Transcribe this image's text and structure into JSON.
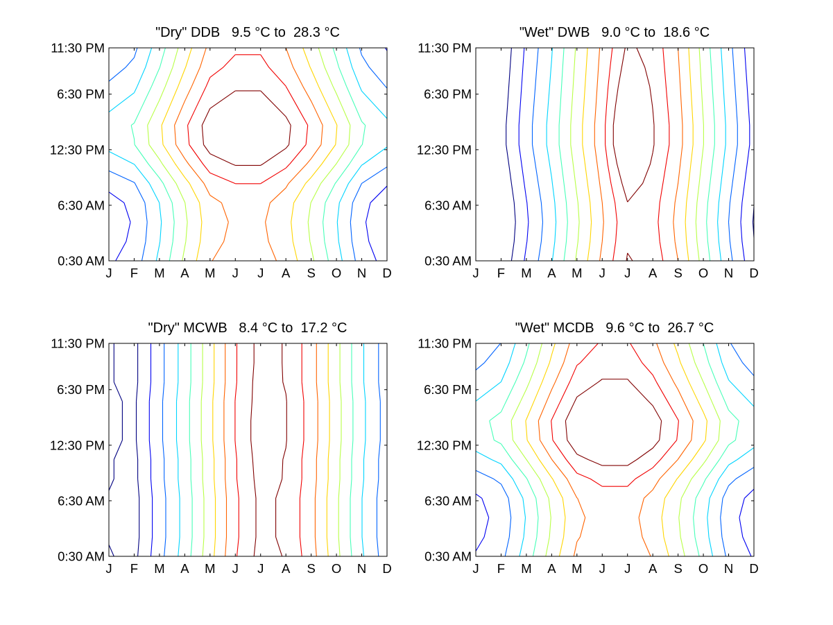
{
  "chart_data": [
    {
      "type": "contour",
      "title": "\"Dry\" DDB   9.5 °C to  28.3 °C",
      "x_ticks": [
        "J",
        "F",
        "M",
        "A",
        "M",
        "J",
        "J",
        "A",
        "S",
        "O",
        "N",
        "D"
      ],
      "y_ticks": [
        "0:30 AM",
        "6:30 AM",
        "12:30 PM",
        "6:30 PM",
        "11:30 PM"
      ],
      "xlim": [
        1,
        12
      ],
      "ylim": [
        0.5,
        23.5
      ],
      "z_range": [
        9.5,
        28.3
      ],
      "colormap": "jet",
      "grid": false,
      "grid_values": [
        [
          12.0,
          13.2,
          16.5,
          20.2,
          23.5,
          24.6,
          24.6,
          23.0,
          20.2,
          16.9,
          13.3,
          11.6
        ],
        [
          11.5,
          12.7,
          16.0,
          19.7,
          23.0,
          24.1,
          24.1,
          22.5,
          19.7,
          16.4,
          12.8,
          11.1
        ],
        [
          11.3,
          12.5,
          15.8,
          19.5,
          22.8,
          23.9,
          23.9,
          22.3,
          19.5,
          16.2,
          12.6,
          10.9
        ],
        [
          11.6,
          12.8,
          16.1,
          19.8,
          23.1,
          24.2,
          24.2,
          22.6,
          19.8,
          16.5,
          12.9,
          11.2
        ],
        [
          12.9,
          14.1,
          17.4,
          21.1,
          24.4,
          25.5,
          25.5,
          23.9,
          21.1,
          17.8,
          14.2,
          12.5
        ],
        [
          14.9,
          16.1,
          19.4,
          23.1,
          26.4,
          27.5,
          27.5,
          25.9,
          23.1,
          19.8,
          16.2,
          14.5
        ],
        [
          16.7,
          17.9,
          21.2,
          24.9,
          28.2,
          29.3,
          29.3,
          27.7,
          24.9,
          21.6,
          18.0,
          16.3
        ],
        [
          16.9,
          18.1,
          21.4,
          25.1,
          28.4,
          29.5,
          29.5,
          27.9,
          25.1,
          21.8,
          18.2,
          16.5
        ],
        [
          15.7,
          16.9,
          20.2,
          23.9,
          27.2,
          28.3,
          28.3,
          26.7,
          23.9,
          20.6,
          17.0,
          15.3
        ],
        [
          14.5,
          15.7,
          19.0,
          22.7,
          26.0,
          27.1,
          27.1,
          25.5,
          22.7,
          19.4,
          15.8,
          14.1
        ],
        [
          13.4,
          14.6,
          17.9,
          21.6,
          24.9,
          26.0,
          26.0,
          24.4,
          21.6,
          18.3,
          14.7,
          13.0
        ],
        [
          12.6,
          13.8,
          17.1,
          20.8,
          24.1,
          25.2,
          25.2,
          23.6,
          20.8,
          17.5,
          13.9,
          12.2
        ]
      ]
    },
    {
      "type": "contour",
      "title": "\"Wet\" DWB   9.0 °C to  18.6 °C",
      "x_ticks": [
        "J",
        "F",
        "M",
        "A",
        "M",
        "J",
        "J",
        "A",
        "S",
        "O",
        "N",
        "D"
      ],
      "y_ticks": [
        "0:30 AM",
        "6:30 AM",
        "12:30 PM",
        "6:30 PM",
        "11:30 PM"
      ],
      "xlim": [
        1,
        12
      ],
      "ylim": [
        0.5,
        23.5
      ],
      "z_range": [
        9.0,
        18.6
      ],
      "colormap": "jet",
      "grid": false,
      "grid_values": [
        [
          8.2,
          8.7,
          10.6,
          12.3,
          14.4,
          16.4,
          18.2,
          17.8,
          16.2,
          13.9,
          11.7,
          9.7
        ],
        [
          8.0,
          8.5,
          10.4,
          12.1,
          14.2,
          16.2,
          18.0,
          17.6,
          16.0,
          13.7,
          11.5,
          9.5
        ],
        [
          7.9,
          8.4,
          10.3,
          12.0,
          14.1,
          16.1,
          17.9,
          17.5,
          15.9,
          13.6,
          11.4,
          9.4
        ],
        [
          8.0,
          8.5,
          10.4,
          12.1,
          14.2,
          16.2,
          18.1,
          17.6,
          16.0,
          13.7,
          11.5,
          9.5
        ],
        [
          8.2,
          8.7,
          10.6,
          12.3,
          14.4,
          16.4,
          18.6,
          17.8,
          16.2,
          13.9,
          11.7,
          9.7
        ],
        [
          8.4,
          8.9,
          10.8,
          12.5,
          14.6,
          16.6,
          19.2,
          18.0,
          16.4,
          14.1,
          11.9,
          9.9
        ],
        [
          8.6,
          9.1,
          11.0,
          12.7,
          14.8,
          16.8,
          19.8,
          18.2,
          16.6,
          14.3,
          12.1,
          10.1
        ],
        [
          8.6,
          9.1,
          11.0,
          12.7,
          14.8,
          16.8,
          19.8,
          18.2,
          16.6,
          14.3,
          12.1,
          10.1
        ],
        [
          8.5,
          9.0,
          10.9,
          12.6,
          14.7,
          16.7,
          19.4,
          18.1,
          16.5,
          14.2,
          12.0,
          10.0
        ],
        [
          8.4,
          8.9,
          10.8,
          12.5,
          14.6,
          16.6,
          19.0,
          18.0,
          16.4,
          14.1,
          11.9,
          9.9
        ],
        [
          8.3,
          8.8,
          10.7,
          12.4,
          14.5,
          16.5,
          18.6,
          17.9,
          16.3,
          14.0,
          11.8,
          9.8
        ],
        [
          8.2,
          8.7,
          10.6,
          12.3,
          14.4,
          16.4,
          18.3,
          17.8,
          16.2,
          13.9,
          11.7,
          9.7
        ]
      ]
    },
    {
      "type": "contour",
      "title": "\"Dry\" MCWB   8.4 °C to  17.2 °C",
      "x_ticks": [
        "J",
        "F",
        "M",
        "A",
        "M",
        "J",
        "J",
        "A",
        "S",
        "O",
        "N",
        "D"
      ],
      "y_ticks": [
        "0:30 AM",
        "6:30 AM",
        "12:30 PM",
        "6:30 PM",
        "11:30 PM"
      ],
      "xlim": [
        1,
        12
      ],
      "ylim": [
        0.5,
        23.5
      ],
      "z_range": [
        8.4,
        17.2
      ],
      "colormap": "jet",
      "grid": false,
      "grid_values": [
        [
          8.9,
          8.6,
          10.3,
          11.9,
          13.8,
          15.8,
          17.1,
          16.7,
          15.4,
          13.5,
          11.6,
          10.1
        ],
        [
          8.8,
          8.5,
          10.2,
          11.8,
          13.7,
          15.7,
          17.0,
          16.6,
          15.3,
          13.4,
          11.5,
          10.0
        ],
        [
          8.8,
          8.5,
          10.2,
          11.8,
          13.7,
          15.7,
          17.0,
          16.6,
          15.3,
          13.4,
          11.5,
          10.0
        ],
        [
          8.8,
          8.5,
          10.2,
          11.8,
          13.7,
          15.7,
          17.0,
          16.6,
          15.3,
          13.4,
          11.5,
          10.0
        ],
        [
          8.9,
          8.6,
          10.3,
          11.9,
          13.8,
          15.8,
          17.1,
          16.7,
          15.4,
          13.5,
          11.6,
          10.1
        ],
        [
          8.9,
          8.6,
          10.3,
          11.9,
          13.8,
          15.8,
          17.2,
          16.7,
          15.4,
          13.5,
          11.6,
          10.1
        ],
        [
          9.0,
          8.7,
          10.4,
          12.0,
          13.9,
          15.9,
          17.3,
          16.8,
          15.5,
          13.6,
          11.7,
          10.2
        ],
        [
          9.0,
          8.7,
          10.4,
          12.0,
          13.9,
          15.9,
          17.3,
          16.8,
          15.5,
          13.6,
          11.7,
          10.2
        ],
        [
          9.0,
          8.7,
          10.4,
          12.0,
          13.9,
          15.9,
          17.2,
          16.8,
          15.5,
          13.6,
          11.7,
          10.2
        ],
        [
          8.9,
          8.6,
          10.3,
          11.9,
          13.8,
          15.8,
          17.2,
          16.7,
          15.4,
          13.5,
          11.6,
          10.1
        ],
        [
          8.9,
          8.6,
          10.3,
          11.9,
          13.8,
          15.8,
          17.1,
          16.7,
          15.4,
          13.5,
          11.6,
          10.1
        ],
        [
          8.9,
          8.6,
          10.3,
          11.9,
          13.8,
          15.8,
          17.1,
          16.7,
          15.4,
          13.5,
          11.6,
          10.1
        ]
      ]
    },
    {
      "type": "contour",
      "title": "\"Wet\" MCDB   9.6 °C to  26.7 °C",
      "x_ticks": [
        "J",
        "F",
        "M",
        "A",
        "M",
        "J",
        "J",
        "A",
        "S",
        "O",
        "N",
        "D"
      ],
      "y_ticks": [
        "0:30 AM",
        "6:30 AM",
        "12:30 PM",
        "6:30 PM",
        "11:30 PM"
      ],
      "xlim": [
        1,
        12
      ],
      "ylim": [
        0.5,
        23.5
      ],
      "z_range": [
        9.6,
        26.7
      ],
      "colormap": "jet",
      "grid": false,
      "grid_values": [
        [
          12.3,
          13.4,
          16.4,
          19.8,
          22.8,
          23.8,
          23.8,
          22.3,
          19.8,
          16.8,
          13.5,
          12.0
        ],
        [
          11.8,
          12.9,
          15.9,
          19.3,
          22.3,
          23.3,
          23.3,
          21.8,
          19.3,
          16.3,
          13.0,
          11.5
        ],
        [
          11.6,
          12.7,
          15.7,
          19.1,
          22.1,
          23.1,
          23.1,
          21.6,
          19.1,
          16.1,
          12.8,
          11.3
        ],
        [
          11.9,
          13.0,
          16.0,
          19.4,
          22.4,
          23.4,
          23.4,
          21.9,
          19.4,
          16.4,
          13.1,
          11.6
        ],
        [
          13.1,
          14.2,
          17.2,
          20.6,
          23.6,
          24.6,
          24.6,
          23.1,
          20.6,
          17.6,
          14.3,
          12.8
        ],
        [
          14.9,
          16.0,
          19.0,
          22.4,
          25.4,
          26.4,
          26.4,
          24.9,
          22.4,
          19.4,
          16.1,
          14.6
        ],
        [
          16.5,
          17.6,
          20.6,
          24.0,
          27.0,
          28.0,
          28.0,
          26.5,
          24.0,
          21.0,
          17.7,
          16.2
        ],
        [
          16.7,
          17.8,
          20.8,
          24.2,
          27.2,
          28.2,
          28.2,
          26.7,
          24.2,
          21.2,
          17.9,
          16.4
        ],
        [
          15.6,
          16.7,
          19.7,
          23.1,
          26.1,
          27.1,
          27.1,
          25.6,
          23.1,
          20.1,
          16.8,
          15.3
        ],
        [
          14.5,
          15.6,
          18.6,
          22.0,
          25.0,
          26.0,
          26.0,
          24.5,
          22.0,
          19.0,
          15.7,
          14.2
        ],
        [
          13.5,
          14.6,
          17.6,
          21.0,
          24.0,
          25.0,
          25.0,
          23.5,
          21.0,
          18.0,
          14.7,
          13.2
        ],
        [
          12.8,
          13.9,
          16.9,
          20.3,
          23.3,
          24.3,
          24.3,
          22.8,
          20.3,
          17.3,
          14.0,
          12.5
        ]
      ]
    }
  ]
}
